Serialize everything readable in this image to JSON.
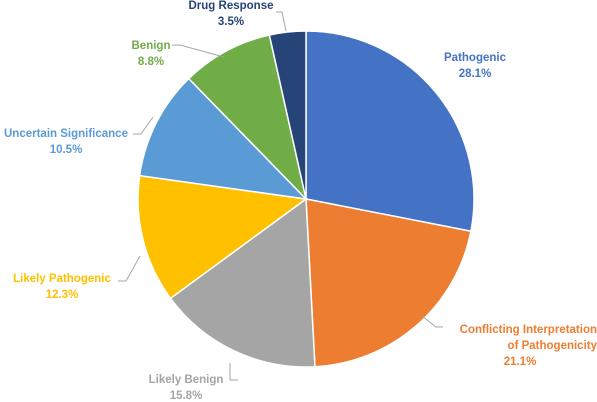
{
  "chart_data": {
    "type": "pie",
    "title": "",
    "slices": [
      {
        "label": "Pathogenic",
        "value": 28.1,
        "display": "28.1%",
        "color": "#4472C4",
        "label_color": "#4472C4"
      },
      {
        "label": "Conflicting Interpretation of Pathogenicity",
        "value": 21.1,
        "display": "21.1%",
        "color": "#ED7D31",
        "label_color": "#ED7D31"
      },
      {
        "label": "Likely Benign",
        "value": 15.8,
        "display": "15.8%",
        "color": "#A5A5A5",
        "label_color": "#A5A5A5"
      },
      {
        "label": "Likely Pathogenic",
        "value": 12.3,
        "display": "12.3%",
        "color": "#FFC000",
        "label_color": "#FFC000"
      },
      {
        "label": "Uncertain Significance",
        "value": 10.5,
        "display": "10.5%",
        "color": "#5B9BD5",
        "label_color": "#5B9BD5"
      },
      {
        "label": "Benign",
        "value": 8.8,
        "display": "8.8%",
        "color": "#70AD47",
        "label_color": "#70AD47"
      },
      {
        "label": "Drug Response",
        "value": 3.5,
        "display": "3.5%",
        "color": "#264478",
        "label_color": "#264478"
      }
    ]
  }
}
